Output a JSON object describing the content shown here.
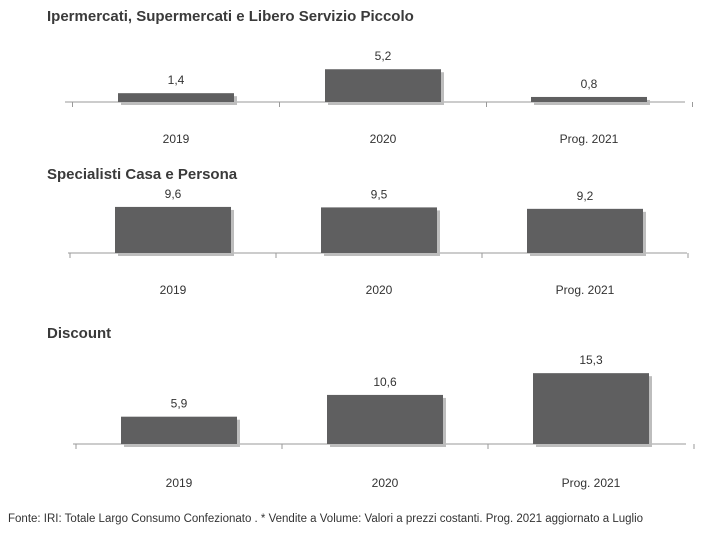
{
  "colors": {
    "bar": "#5f5f60",
    "shadow": "#bdbdbd",
    "axis": "#9a9a9a",
    "text": "#333333"
  },
  "chart_data": [
    {
      "type": "bar",
      "title": "Ipermercati,  Supermercati e Libero Servizio Piccolo",
      "categories": [
        "2019",
        "2020",
        "Prog. 2021"
      ],
      "values": [
        1.4,
        5.2,
        0.8
      ],
      "value_labels": [
        "1,4",
        "5,2",
        "0,8"
      ],
      "xlabel": "",
      "ylabel": "",
      "grid": false
    },
    {
      "type": "bar",
      "title": "Specialisti  Casa e Persona",
      "categories": [
        "2019",
        "2020",
        "Prog. 2021"
      ],
      "values": [
        9.6,
        9.5,
        9.2
      ],
      "value_labels": [
        "9,6",
        "9,5",
        "9,2"
      ],
      "xlabel": "",
      "ylabel": "",
      "grid": false
    },
    {
      "type": "bar",
      "title": "Discount",
      "categories": [
        "2019",
        "2020",
        "Prog. 2021"
      ],
      "values": [
        5.9,
        10.6,
        15.3
      ],
      "value_labels": [
        "5,9",
        "10,6",
        "15,3"
      ],
      "xlabel": "",
      "ylabel": "",
      "grid": false
    }
  ],
  "footer": "Fonte: IRI: Totale Largo Consumo Confezionato . * Vendite a Volume: Valori a prezzi costanti.    Prog. 2021 aggiornato a Luglio"
}
